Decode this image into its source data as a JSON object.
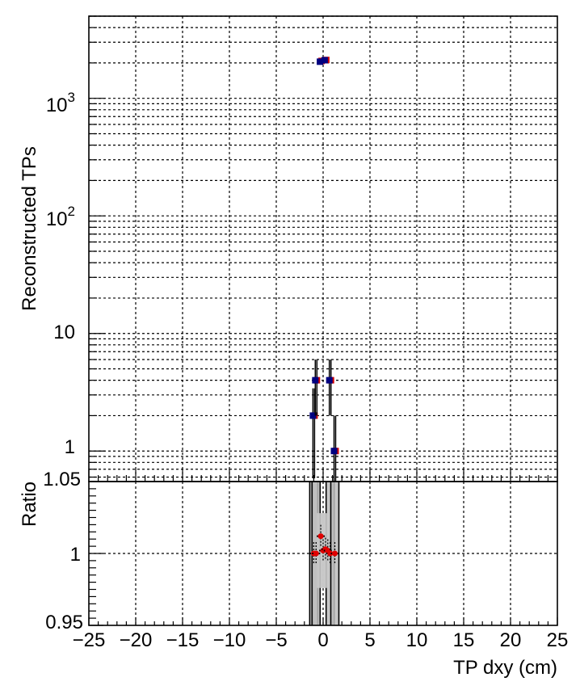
{
  "chart_data": [
    {
      "panel": "top",
      "type": "scatter",
      "ylabel": "Reconstructed TPs",
      "yscale": "log",
      "ylim": [
        0.55,
        5000
      ],
      "xlim": [
        -25,
        25
      ],
      "ytick_labels": [
        "1",
        "10",
        "10^3",
        "10^2"
      ],
      "grid": true,
      "series": [
        {
          "color": "#d40000",
          "points": [
            {
              "x": -1.0,
              "y": 2
            },
            {
              "x": -0.75,
              "y": 4
            },
            {
              "x": -0.25,
              "y": 2080
            },
            {
              "x": 0.25,
              "y": 2120
            },
            {
              "x": 0.75,
              "y": 4
            },
            {
              "x": 1.25,
              "y": 1
            }
          ]
        },
        {
          "color": "#000080",
          "points": [
            {
              "x": -1.0,
              "y": 2
            },
            {
              "x": -0.75,
              "y": 4
            },
            {
              "x": -0.25,
              "y": 2050
            },
            {
              "x": 0.25,
              "y": 2110
            },
            {
              "x": 0.75,
              "y": 4
            },
            {
              "x": 1.25,
              "y": 1
            }
          ]
        }
      ]
    },
    {
      "panel": "bottom",
      "type": "scatter",
      "ylabel": "Ratio",
      "xlabel": "TP dxy (cm)",
      "ylim": [
        0.95,
        1.05
      ],
      "xlim": [
        -25,
        25
      ],
      "ytick_labels": [
        "0.95",
        "1",
        "1.05"
      ],
      "xtick_labels": [
        "−25",
        "−20",
        "−15",
        "−10",
        "−5",
        "0",
        "5",
        "10",
        "15",
        "20",
        "25"
      ],
      "grid": true,
      "points": [
        {
          "x": -1.0,
          "y": 1.0
        },
        {
          "x": -0.75,
          "y": 1.0
        },
        {
          "x": -0.25,
          "y": 1.012
        },
        {
          "x": 0.0,
          "y": 1.002
        },
        {
          "x": 0.25,
          "y": 1.003
        },
        {
          "x": 0.5,
          "y": 1.002
        },
        {
          "x": 0.75,
          "y": 1.0
        },
        {
          "x": 1.25,
          "y": 1.0
        }
      ]
    }
  ]
}
